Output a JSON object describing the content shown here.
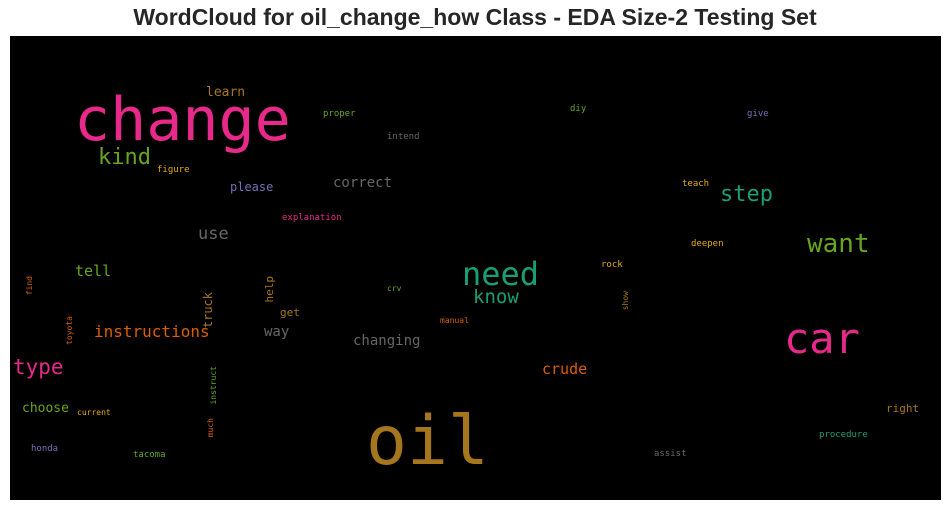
{
  "chart_data": {
    "type": "wordcloud",
    "title": "WordCloud for oil_change_how Class - EDA Size-2 Testing Set",
    "background": "#000000",
    "words": [
      {
        "text": "change",
        "weight": 1.0,
        "color": "#e7298a"
      },
      {
        "text": "oil",
        "weight": 0.95,
        "color": "#a6761d"
      },
      {
        "text": "car",
        "weight": 0.7,
        "color": "#e7298a"
      },
      {
        "text": "need",
        "weight": 0.55,
        "color": "#1b9e77"
      },
      {
        "text": "want",
        "weight": 0.45,
        "color": "#66a61e"
      },
      {
        "text": "step",
        "weight": 0.4,
        "color": "#1b9e77"
      },
      {
        "text": "kind",
        "weight": 0.38,
        "color": "#66a61e"
      },
      {
        "text": "type",
        "weight": 0.38,
        "color": "#e7298a"
      },
      {
        "text": "know",
        "weight": 0.35,
        "color": "#1b9e77"
      },
      {
        "text": "use",
        "weight": 0.32,
        "color": "#666666"
      },
      {
        "text": "instructions",
        "weight": 0.3,
        "color": "#d95f02"
      },
      {
        "text": "crude",
        "weight": 0.29,
        "color": "#d95f02"
      },
      {
        "text": "changing",
        "weight": 0.27,
        "color": "#666666"
      },
      {
        "text": "correct",
        "weight": 0.27,
        "color": "#666666"
      },
      {
        "text": "tell",
        "weight": 0.27,
        "color": "#66a61e"
      },
      {
        "text": "choose",
        "weight": 0.26,
        "color": "#66a61e"
      },
      {
        "text": "way",
        "weight": 0.26,
        "color": "#666666"
      },
      {
        "text": "learn",
        "weight": 0.25,
        "color": "#a6761d"
      },
      {
        "text": "please",
        "weight": 0.22,
        "color": "#7570b3"
      },
      {
        "text": "truck",
        "weight": 0.22,
        "color": "#a6761d"
      },
      {
        "text": "help",
        "weight": 0.2,
        "color": "#a6761d"
      },
      {
        "text": "get",
        "weight": 0.2,
        "color": "#a6761d"
      },
      {
        "text": "right",
        "weight": 0.2,
        "color": "#a6761d"
      },
      {
        "text": "explanation",
        "weight": 0.15,
        "color": "#e7298a"
      },
      {
        "text": "proper",
        "weight": 0.15,
        "color": "#66a61e"
      },
      {
        "text": "intend",
        "weight": 0.15,
        "color": "#666666"
      },
      {
        "text": "diy",
        "weight": 0.15,
        "color": "#66a61e"
      },
      {
        "text": "give",
        "weight": 0.15,
        "color": "#7570b3"
      },
      {
        "text": "figure",
        "weight": 0.15,
        "color": "#e6ab02"
      },
      {
        "text": "teach",
        "weight": 0.15,
        "color": "#e6ab02"
      },
      {
        "text": "deepen",
        "weight": 0.15,
        "color": "#e6ab02"
      },
      {
        "text": "rock",
        "weight": 0.15,
        "color": "#e6ab02"
      },
      {
        "text": "show",
        "weight": 0.15,
        "color": "#a6761d"
      },
      {
        "text": "crv",
        "weight": 0.15,
        "color": "#66a61e"
      },
      {
        "text": "manual",
        "weight": 0.15,
        "color": "#d95f02"
      },
      {
        "text": "find",
        "weight": 0.15,
        "color": "#d95f02"
      },
      {
        "text": "toyota",
        "weight": 0.15,
        "color": "#d95f02"
      },
      {
        "text": "instruct",
        "weight": 0.15,
        "color": "#66a61e"
      },
      {
        "text": "much",
        "weight": 0.15,
        "color": "#d95f02"
      },
      {
        "text": "current",
        "weight": 0.15,
        "color": "#e6ab02"
      },
      {
        "text": "honda",
        "weight": 0.15,
        "color": "#7570b3"
      },
      {
        "text": "tacoma",
        "weight": 0.15,
        "color": "#66a61e"
      },
      {
        "text": "assist",
        "weight": 0.15,
        "color": "#666666"
      },
      {
        "text": "procedure",
        "weight": 0.15,
        "color": "#1b9e77"
      }
    ]
  }
}
